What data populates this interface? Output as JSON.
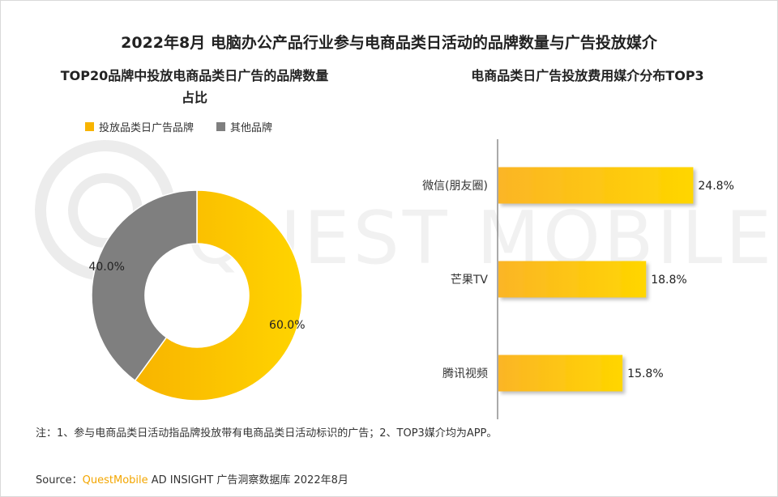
{
  "title": "2022年8月 电脑办公产品行业参与电商品类日活动的品牌数量与广告投放媒介",
  "left_subtitle_line1": "TOP20品牌中投放电商品类日广告的品牌数量",
  "left_subtitle_line2": "占比",
  "right_subtitle": "电商品类日广告投放费用媒介分布TOP3",
  "watermark_text": "QUEST MOBILE",
  "note": "注：1、参与电商品类日活动指品牌投放带有电商品类日活动标识的广告；2、TOP3媒介均为APP。",
  "source": {
    "prefix": "Source：",
    "brand": "QuestMobile",
    "suffix": " AD INSIGHT 广告洞察数据库 2022年8月"
  },
  "colors": {
    "yellow": "#f8b400",
    "yellow_light": "#ffd400",
    "gray": "#7f7f7f"
  },
  "chart_data": [
    {
      "type": "pie",
      "donut": true,
      "legend_position": "top-left",
      "series": [
        {
          "name": "投放品类日广告品牌",
          "value": 60.0,
          "label": "60.0%",
          "color": "#f8b400"
        },
        {
          "name": "其他品牌",
          "value": 40.0,
          "label": "40.0%",
          "color": "#7f7f7f"
        }
      ]
    },
    {
      "type": "bar",
      "orientation": "horizontal",
      "categories": [
        "微信(朋友圈)",
        "芒果TV",
        "腾讯视频"
      ],
      "values": [
        24.8,
        18.8,
        15.8
      ],
      "labels": [
        "24.8%",
        "18.8%",
        "15.8%"
      ],
      "grid": false
    }
  ]
}
